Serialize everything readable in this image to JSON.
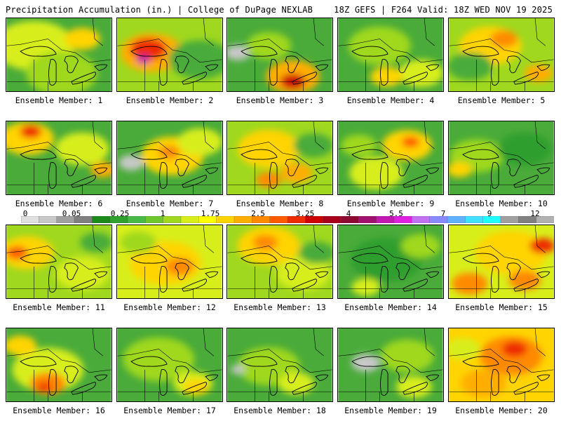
{
  "header": {
    "left_title": "Precipitation Accumulation (in.) | College of DuPage NEXLAB",
    "right_title": "18Z GEFS | F264 Valid: 18Z WED NOV 19 2025"
  },
  "colorbar": {
    "tick_labels": [
      "0",
      "0.05",
      "0.25",
      "1",
      "1.75",
      "2.5",
      "3.25",
      "4",
      "5.5",
      "7",
      "9",
      "12"
    ],
    "colors": [
      "#e0e0e0",
      "#c8c8c8",
      "#a0a0a0",
      "#7f7f7f",
      "#1b8a1b",
      "#2f9f2f",
      "#48b848",
      "#6cc62c",
      "#9fd81e",
      "#d8ee1a",
      "#ffff00",
      "#ffd400",
      "#ffae00",
      "#ff8a00",
      "#ff5a00",
      "#ee2a00",
      "#cc0000",
      "#a8001a",
      "#8c0a32",
      "#a0106e",
      "#c018b0",
      "#e020e0",
      "#c070f0",
      "#8888ff",
      "#60b0ff",
      "#40e0ff",
      "#20ffff",
      "#a0a0a0",
      "#808080",
      "#b0b0b0"
    ]
  },
  "panels": [
    {
      "label": "Ensemble Member: 1",
      "base": "#4aab3a",
      "blobs": [
        [
          "#d8ee1a",
          40,
          40,
          45
        ],
        [
          "#ffd400",
          110,
          30,
          20
        ],
        [
          "#9fd81e",
          80,
          80,
          40
        ]
      ]
    },
    {
      "label": "Ensemble Member: 2",
      "base": "#9fd81e",
      "blobs": [
        [
          "#ffae00",
          50,
          50,
          35
        ],
        [
          "#ee2a00",
          45,
          45,
          20
        ],
        [
          "#c018b0",
          38,
          60,
          8
        ],
        [
          "#4aab3a",
          120,
          60,
          35
        ]
      ]
    },
    {
      "label": "Ensemble Member: 3",
      "base": "#4aab3a",
      "blobs": [
        [
          "#c8c8c8",
          15,
          50,
          14
        ],
        [
          "#ffae00",
          95,
          85,
          30
        ],
        [
          "#cc0000",
          95,
          92,
          14
        ],
        [
          "#9fd81e",
          60,
          40,
          25
        ]
      ]
    },
    {
      "label": "Ensemble Member: 4",
      "base": "#4aab3a",
      "blobs": [
        [
          "#9fd81e",
          60,
          40,
          35
        ],
        [
          "#d8ee1a",
          120,
          80,
          25
        ],
        [
          "#ffd400",
          70,
          85,
          18
        ]
      ]
    },
    {
      "label": "Ensemble Member: 5",
      "base": "#9fd81e",
      "blobs": [
        [
          "#ffd400",
          60,
          40,
          35
        ],
        [
          "#ff8a00",
          80,
          30,
          15
        ],
        [
          "#4aab3a",
          30,
          70,
          25
        ],
        [
          "#ffae00",
          130,
          80,
          16
        ]
      ]
    },
    {
      "label": "Ensemble Member: 6",
      "base": "#4aab3a",
      "blobs": [
        [
          "#ffd400",
          30,
          25,
          30
        ],
        [
          "#ee2a00",
          35,
          15,
          12
        ],
        [
          "#d8ee1a",
          110,
          40,
          30
        ],
        [
          "#ffae00",
          140,
          70,
          14
        ]
      ]
    },
    {
      "label": "Ensemble Member: 7",
      "base": "#4aab3a",
      "blobs": [
        [
          "#c8c8c8",
          20,
          60,
          14
        ],
        [
          "#ffd400",
          80,
          50,
          35
        ],
        [
          "#ff8a00",
          75,
          45,
          12
        ],
        [
          "#d8ee1a",
          120,
          30,
          25
        ]
      ]
    },
    {
      "label": "Ensemble Member: 8",
      "base": "#9fd81e",
      "blobs": [
        [
          "#ffd400",
          60,
          40,
          35
        ],
        [
          "#ff8a00",
          60,
          85,
          14
        ],
        [
          "#4aab3a",
          125,
          35,
          22
        ],
        [
          "#ffae00",
          100,
          75,
          18
        ]
      ]
    },
    {
      "label": "Ensemble Member: 9",
      "base": "#4aab3a",
      "blobs": [
        [
          "#ffd400",
          100,
          35,
          28
        ],
        [
          "#ff5a00",
          105,
          30,
          10
        ],
        [
          "#d8ee1a",
          55,
          75,
          30
        ],
        [
          "#9fd81e",
          30,
          35,
          20
        ]
      ]
    },
    {
      "label": "Ensemble Member: 10",
      "base": "#4aab3a",
      "blobs": [
        [
          "#9fd81e",
          40,
          50,
          30
        ],
        [
          "#ffd400",
          15,
          70,
          14
        ],
        [
          "#2f9f2f",
          110,
          40,
          30
        ]
      ]
    },
    {
      "label": "Ensemble Member: 11",
      "base": "#9fd81e",
      "blobs": [
        [
          "#ffd400",
          30,
          40,
          30
        ],
        [
          "#ff5a00",
          15,
          40,
          12
        ],
        [
          "#d8ee1a",
          110,
          70,
          30
        ],
        [
          "#4aab3a",
          130,
          25,
          18
        ]
      ]
    },
    {
      "label": "Ensemble Member: 12",
      "base": "#d8ee1a",
      "blobs": [
        [
          "#ffd400",
          70,
          55,
          40
        ],
        [
          "#ff8a00",
          90,
          60,
          16
        ],
        [
          "#9fd81e",
          30,
          25,
          20
        ]
      ]
    },
    {
      "label": "Ensemble Member: 13",
      "base": "#9fd81e",
      "blobs": [
        [
          "#ffd400",
          60,
          30,
          35
        ],
        [
          "#ff8a00",
          55,
          25,
          14
        ],
        [
          "#d8ee1a",
          110,
          70,
          30
        ],
        [
          "#4aab3a",
          130,
          40,
          20
        ]
      ]
    },
    {
      "label": "Ensemble Member: 14",
      "base": "#4aab3a",
      "blobs": [
        [
          "#2f9f2f",
          70,
          50,
          40
        ],
        [
          "#9fd81e",
          120,
          30,
          22
        ],
        [
          "#d8ee1a",
          40,
          90,
          16
        ]
      ]
    },
    {
      "label": "Ensemble Member: 15",
      "base": "#d8ee1a",
      "blobs": [
        [
          "#ffd400",
          90,
          40,
          40
        ],
        [
          "#ee2a00",
          135,
          30,
          14
        ],
        [
          "#ff8a00",
          30,
          85,
          20
        ],
        [
          "#ff8a00",
          110,
          80,
          18
        ]
      ]
    },
    {
      "label": "Ensemble Member: 16",
      "base": "#4aab3a",
      "blobs": [
        [
          "#d8ee1a",
          60,
          60,
          40
        ],
        [
          "#ff8a00",
          60,
          80,
          20
        ],
        [
          "#ee2a00",
          55,
          85,
          8
        ],
        [
          "#ffd400",
          20,
          25,
          18
        ]
      ]
    },
    {
      "label": "Ensemble Member: 17",
      "base": "#4aab3a",
      "blobs": [
        [
          "#9fd81e",
          60,
          45,
          40
        ],
        [
          "#d8ee1a",
          110,
          80,
          22
        ],
        [
          "#ffd400",
          115,
          85,
          14
        ]
      ]
    },
    {
      "label": "Ensemble Member: 18",
      "base": "#4aab3a",
      "blobs": [
        [
          "#9fd81e",
          60,
          55,
          35
        ],
        [
          "#c8c8c8",
          15,
          60,
          8
        ],
        [
          "#d8ee1a",
          100,
          80,
          20
        ]
      ]
    },
    {
      "label": "Ensemble Member: 19",
      "base": "#4aab3a",
      "blobs": [
        [
          "#c8c8c8",
          40,
          50,
          16
        ],
        [
          "#9fd81e",
          100,
          40,
          30
        ],
        [
          "#d8ee1a",
          110,
          85,
          20
        ]
      ]
    },
    {
      "label": "Ensemble Member: 20",
      "base": "#ffd400",
      "blobs": [
        [
          "#ff8a00",
          90,
          40,
          35
        ],
        [
          "#ee2a00",
          95,
          30,
          14
        ],
        [
          "#ffae00",
          50,
          80,
          25
        ],
        [
          "#d8ee1a",
          20,
          30,
          20
        ]
      ]
    }
  ]
}
